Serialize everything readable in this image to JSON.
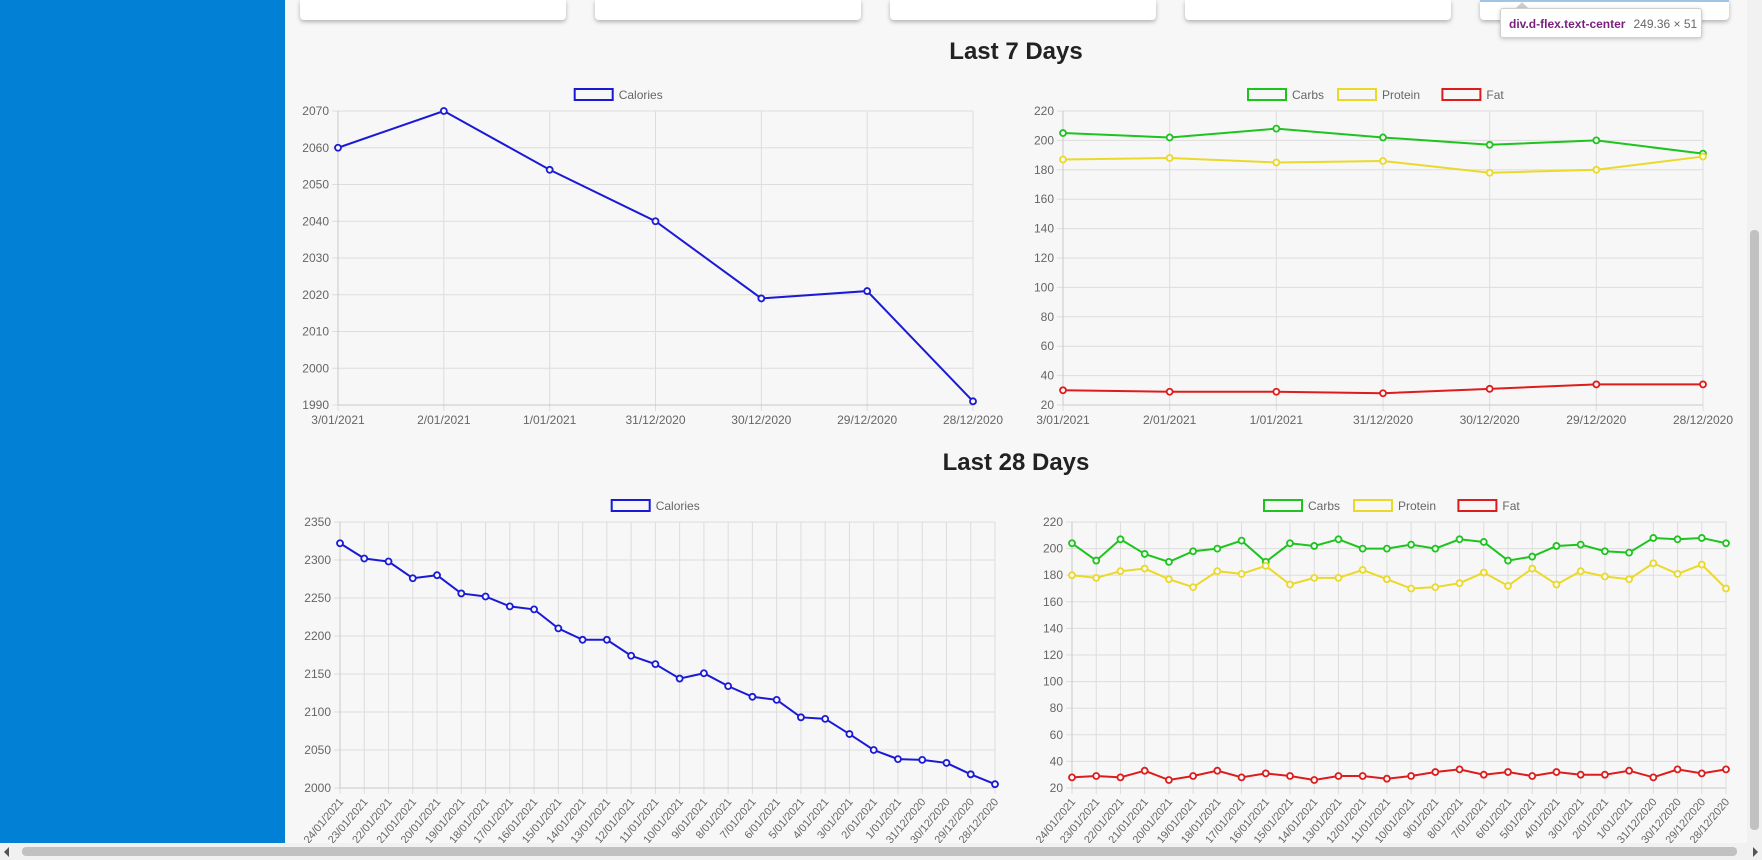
{
  "colors": {
    "sidebar": "#0280d6",
    "calories": "#1a1ad6",
    "carbs": "#1ec41e",
    "protein": "#ebd92a",
    "fat": "#dd1c1c",
    "grid": "#dddddd"
  },
  "tooltip": {
    "name": "div.d-flex.text-center",
    "size": "249.36 × 51"
  },
  "sections": {
    "week": "Last 7 Days",
    "month": "Last 28 Days"
  },
  "chart_data": [
    {
      "id": "cal7",
      "type": "line",
      "categories": [
        "3/01/2021",
        "2/01/2021",
        "1/01/2021",
        "31/12/2020",
        "30/12/2020",
        "29/12/2020",
        "28/12/2020"
      ],
      "series": [
        {
          "name": "Calories",
          "color": "#1a1ad6",
          "values": [
            2060,
            2070,
            2054,
            2040,
            2019,
            2021,
            1991
          ]
        }
      ],
      "ylim": [
        1990,
        2070
      ],
      "yticks": [
        1990,
        2000,
        2010,
        2020,
        2030,
        2040,
        2050,
        2060,
        2070
      ],
      "grid": true,
      "legend": "top-center"
    },
    {
      "id": "mac7",
      "type": "line",
      "categories": [
        "3/01/2021",
        "2/01/2021",
        "1/01/2021",
        "31/12/2020",
        "30/12/2020",
        "29/12/2020",
        "28/12/2020"
      ],
      "series": [
        {
          "name": "Carbs",
          "color": "#1ec41e",
          "values": [
            205,
            202,
            208,
            202,
            197,
            200,
            191
          ]
        },
        {
          "name": "Protein",
          "color": "#ebd92a",
          "values": [
            187,
            188,
            185,
            186,
            178,
            180,
            189
          ]
        },
        {
          "name": "Fat",
          "color": "#dd1c1c",
          "values": [
            30,
            29,
            29,
            28,
            31,
            34,
            34
          ]
        }
      ],
      "ylim": [
        20,
        220
      ],
      "yticks": [
        20,
        40,
        60,
        80,
        100,
        120,
        140,
        160,
        180,
        200,
        220
      ],
      "grid": true,
      "legend": "top-center"
    },
    {
      "id": "cal28",
      "type": "line",
      "categories": [
        "24/01/2021",
        "23/01/2021",
        "22/01/2021",
        "21/01/2021",
        "20/01/2021",
        "19/01/2021",
        "18/01/2021",
        "17/01/2021",
        "16/01/2021",
        "15/01/2021",
        "14/01/2021",
        "13/01/2021",
        "12/01/2021",
        "11/01/2021",
        "10/01/2021",
        "9/01/2021",
        "8/01/2021",
        "7/01/2021",
        "6/01/2021",
        "5/01/2021",
        "4/01/2021",
        "3/01/2021",
        "2/01/2021",
        "1/01/2021",
        "31/12/2020",
        "30/12/2020",
        "29/12/2020",
        "28/12/2020"
      ],
      "series": [
        {
          "name": "Calories",
          "color": "#1a1ad6",
          "values": [
            2322,
            2302,
            2298,
            2276,
            2280,
            2256,
            2252,
            2239,
            2235,
            2210,
            2195,
            2195,
            2174,
            2163,
            2144,
            2151,
            2134,
            2120,
            2116,
            2093,
            2091,
            2071,
            2050,
            2038,
            2037,
            2033,
            2018,
            2005
          ]
        }
      ],
      "ylim": [
        2000,
        2350
      ],
      "yticks": [
        2000,
        2050,
        2100,
        2150,
        2200,
        2250,
        2300,
        2350
      ],
      "grid": true,
      "legend": "top-center"
    },
    {
      "id": "mac28",
      "type": "line",
      "categories": [
        "24/01/2021",
        "23/01/2021",
        "22/01/2021",
        "21/01/2021",
        "20/01/2021",
        "19/01/2021",
        "18/01/2021",
        "17/01/2021",
        "16/01/2021",
        "15/01/2021",
        "14/01/2021",
        "13/01/2021",
        "12/01/2021",
        "11/01/2021",
        "10/01/2021",
        "9/01/2021",
        "8/01/2021",
        "7/01/2021",
        "6/01/2021",
        "5/01/2021",
        "4/01/2021",
        "3/01/2021",
        "2/01/2021",
        "1/01/2021",
        "31/12/2020",
        "30/12/2020",
        "29/12/2020",
        "28/12/2020"
      ],
      "series": [
        {
          "name": "Carbs",
          "color": "#1ec41e",
          "values": [
            204,
            191,
            207,
            196,
            190,
            198,
            200,
            206,
            190,
            204,
            202,
            207,
            200,
            200,
            203,
            200,
            207,
            205,
            191,
            194,
            202,
            203,
            198,
            197,
            208,
            207,
            208,
            204
          ]
        },
        {
          "name": "Protein",
          "color": "#ebd92a",
          "values": [
            180,
            178,
            183,
            185,
            177,
            171,
            183,
            181,
            187,
            173,
            178,
            178,
            184,
            177,
            170,
            171,
            174,
            182,
            172,
            185,
            173,
            183,
            179,
            177,
            189,
            181,
            188,
            170
          ]
        },
        {
          "name": "Fat",
          "color": "#dd1c1c",
          "values": [
            28,
            29,
            28,
            33,
            26,
            29,
            33,
            28,
            31,
            29,
            26,
            29,
            29,
            27,
            29,
            32,
            34,
            30,
            32,
            29,
            32,
            30,
            30,
            33,
            28,
            34,
            31,
            34
          ]
        }
      ],
      "ylim": [
        20,
        220
      ],
      "yticks": [
        20,
        40,
        60,
        80,
        100,
        120,
        140,
        160,
        180,
        200,
        220
      ],
      "grid": true,
      "legend": "top-center"
    }
  ]
}
